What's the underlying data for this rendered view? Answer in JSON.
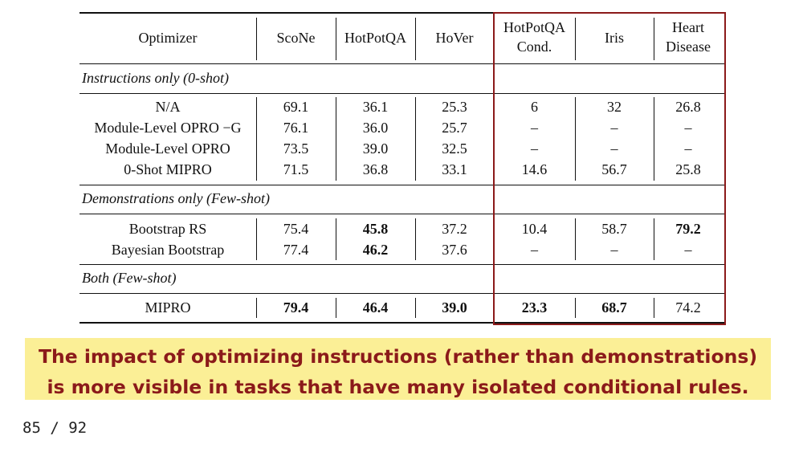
{
  "table": {
    "headers": {
      "optimizer": "Optimizer",
      "scone": "ScoNe",
      "hotpotqa": "HotPotQA",
      "hover": "HoVer",
      "hotpotqa_cond_l1": "HotPotQA",
      "hotpotqa_cond_l2": "Cond.",
      "iris": "Iris",
      "heart_l1": "Heart",
      "heart_l2": "Disease"
    },
    "sections": [
      "Instructions only (0-shot)",
      "Demonstrations only (Few-shot)",
      "Both (Few-shot)"
    ],
    "rows": [
      {
        "name": "N/A",
        "values": [
          "69.1",
          "36.1",
          "25.3",
          "6",
          "32",
          "26.8"
        ]
      },
      {
        "name": "Module-Level OPRO −G",
        "values": [
          "76.1",
          "36.0",
          "25.7",
          "–",
          "–",
          "–"
        ]
      },
      {
        "name": "Module-Level OPRO",
        "values": [
          "73.5",
          "39.0",
          "32.5",
          "–",
          "–",
          "–"
        ]
      },
      {
        "name": "0-Shot MIPRO",
        "values": [
          "71.5",
          "36.8",
          "33.1",
          "14.6",
          "56.7",
          "25.8"
        ]
      },
      {
        "name": "Bootstrap RS",
        "values": [
          "75.4",
          "45.8",
          "37.2",
          "10.4",
          "58.7",
          "79.2"
        ]
      },
      {
        "name": "Bayesian Bootstrap",
        "values": [
          "77.4",
          "46.2",
          "37.6",
          "–",
          "–",
          "–"
        ]
      },
      {
        "name": "MIPRO",
        "values": [
          "79.4",
          "46.4",
          "39.0",
          "23.3",
          "68.7",
          "74.2"
        ]
      }
    ]
  },
  "callout": "The impact of optimizing instructions (rather than demonstrations)\nis more visible in tasks that have many isolated conditional rules.",
  "page_number": "85 / 92",
  "colors": {
    "highlight_box": "#8b1a1a",
    "callout_background": "#fbef96",
    "callout_text": "#8b1a1a"
  }
}
